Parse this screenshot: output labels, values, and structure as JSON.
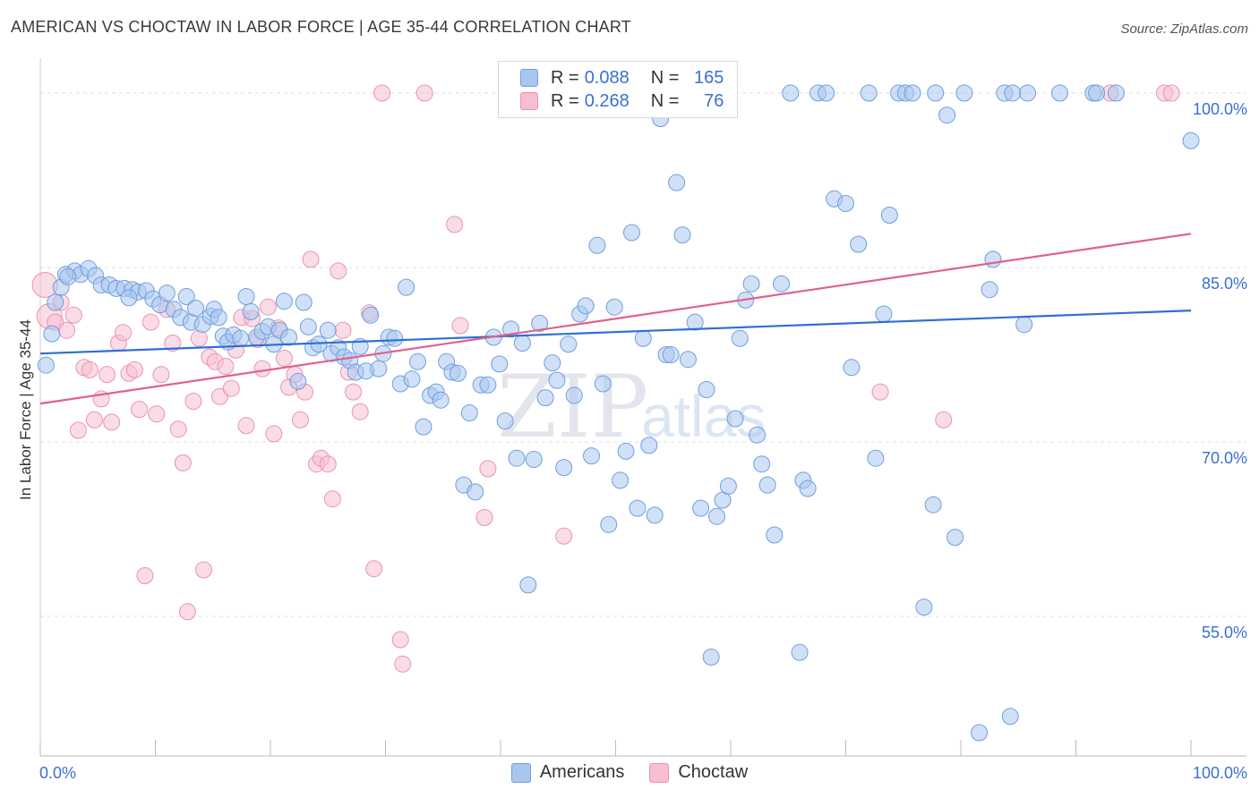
{
  "title": "AMERICAN VS CHOCTAW IN LABOR FORCE | AGE 35-44 CORRELATION CHART",
  "source": "Source: ZipAtlas.com",
  "watermark": "ZIPatlas",
  "legend": {
    "rows": [
      {
        "r_label": "R =",
        "r_value": "0.088",
        "n_label": "N =",
        "n_value": "165"
      },
      {
        "r_label": "R =",
        "r_value": "0.268",
        "n_label": "N =",
        "n_value": "76"
      }
    ],
    "bottom": [
      {
        "label": "Americans"
      },
      {
        "label": "Choctaw"
      }
    ]
  },
  "colors": {
    "americans_fill": "#a9c6ef",
    "americans_stroke": "#6f9fdf",
    "americans_line": "#2f6fd3",
    "choctaw_fill": "#f6bfd1",
    "choctaw_stroke": "#eb93b1",
    "choctaw_line": "#e0608d",
    "axis_text": "#3b6fd1",
    "grid": "#dddddd"
  },
  "chart_data": {
    "type": "scatter",
    "title": "AMERICAN VS CHOCTAW IN LABOR FORCE | AGE 35-44 CORRELATION CHART",
    "xlabel": "",
    "ylabel": "In Labor Force | Age 35-44",
    "xlim": [
      0,
      100
    ],
    "ylim": [
      43,
      103
    ],
    "x_tick_labels": [
      "0.0%",
      "100.0%"
    ],
    "y_ticks": [
      55,
      70,
      85,
      100
    ],
    "y_tick_labels": [
      "55.0%",
      "70.0%",
      "85.0%",
      "100.0%"
    ],
    "grid": true,
    "legend_position": "bottom",
    "series": [
      {
        "name": "Americans",
        "R": 0.088,
        "N": 165,
        "trend": {
          "x": [
            0,
            100
          ],
          "y": [
            77.6,
            81.3
          ]
        },
        "points": [
          {
            "x": 0.5,
            "y": 76.6
          },
          {
            "x": 1.0,
            "y": 79.3
          },
          {
            "x": 1.3,
            "y": 82.0
          },
          {
            "x": 1.8,
            "y": 83.3
          },
          {
            "x": 2.2,
            "y": 84.4
          },
          {
            "x": 3.0,
            "y": 84.7
          },
          {
            "x": 3.5,
            "y": 84.4
          },
          {
            "x": 4.2,
            "y": 84.9
          },
          {
            "x": 4.8,
            "y": 84.3
          },
          {
            "x": 5.3,
            "y": 83.5
          },
          {
            "x": 6.0,
            "y": 83.5
          },
          {
            "x": 6.6,
            "y": 83.2
          },
          {
            "x": 7.3,
            "y": 83.2
          },
          {
            "x": 8.0,
            "y": 83.1
          },
          {
            "x": 8.5,
            "y": 82.9
          },
          {
            "x": 9.2,
            "y": 83.0
          },
          {
            "x": 9.8,
            "y": 82.3
          },
          {
            "x": 10.4,
            "y": 81.8
          },
          {
            "x": 11.0,
            "y": 82.8
          },
          {
            "x": 11.6,
            "y": 81.4
          },
          {
            "x": 12.2,
            "y": 80.7
          },
          {
            "x": 12.7,
            "y": 82.5
          },
          {
            "x": 13.1,
            "y": 80.3
          },
          {
            "x": 13.5,
            "y": 81.5
          },
          {
            "x": 14.1,
            "y": 80.1
          },
          {
            "x": 14.8,
            "y": 80.8
          },
          {
            "x": 15.1,
            "y": 81.4
          },
          {
            "x": 15.5,
            "y": 80.7
          },
          {
            "x": 15.9,
            "y": 79.1
          },
          {
            "x": 16.3,
            "y": 78.6
          },
          {
            "x": 16.8,
            "y": 79.2
          },
          {
            "x": 17.4,
            "y": 78.9
          },
          {
            "x": 17.9,
            "y": 82.5
          },
          {
            "x": 18.3,
            "y": 81.2
          },
          {
            "x": 18.8,
            "y": 79.0
          },
          {
            "x": 19.3,
            "y": 79.5
          },
          {
            "x": 19.8,
            "y": 79.9
          },
          {
            "x": 20.3,
            "y": 78.4
          },
          {
            "x": 20.8,
            "y": 79.6
          },
          {
            "x": 21.2,
            "y": 82.1
          },
          {
            "x": 21.6,
            "y": 79.0
          },
          {
            "x": 22.4,
            "y": 75.2
          },
          {
            "x": 22.9,
            "y": 82.0
          },
          {
            "x": 23.3,
            "y": 79.9
          },
          {
            "x": 23.7,
            "y": 78.1
          },
          {
            "x": 24.2,
            "y": 78.4
          },
          {
            "x": 25.0,
            "y": 79.6
          },
          {
            "x": 25.3,
            "y": 77.6
          },
          {
            "x": 25.9,
            "y": 78.1
          },
          {
            "x": 26.4,
            "y": 77.3
          },
          {
            "x": 26.9,
            "y": 77.0
          },
          {
            "x": 27.4,
            "y": 76.0
          },
          {
            "x": 27.8,
            "y": 78.2
          },
          {
            "x": 28.3,
            "y": 76.1
          },
          {
            "x": 28.7,
            "y": 80.9
          },
          {
            "x": 29.4,
            "y": 76.3
          },
          {
            "x": 29.8,
            "y": 77.6
          },
          {
            "x": 30.3,
            "y": 79.0
          },
          {
            "x": 30.8,
            "y": 78.9
          },
          {
            "x": 31.3,
            "y": 75.0
          },
          {
            "x": 31.8,
            "y": 83.3
          },
          {
            "x": 32.3,
            "y": 75.4
          },
          {
            "x": 32.8,
            "y": 76.9
          },
          {
            "x": 33.3,
            "y": 71.3
          },
          {
            "x": 33.9,
            "y": 74.0
          },
          {
            "x": 34.4,
            "y": 74.3
          },
          {
            "x": 34.8,
            "y": 73.6
          },
          {
            "x": 35.3,
            "y": 76.9
          },
          {
            "x": 35.8,
            "y": 76.0
          },
          {
            "x": 36.3,
            "y": 75.9
          },
          {
            "x": 36.8,
            "y": 66.3
          },
          {
            "x": 37.3,
            "y": 72.5
          },
          {
            "x": 37.8,
            "y": 65.7
          },
          {
            "x": 38.3,
            "y": 74.9
          },
          {
            "x": 38.9,
            "y": 74.9
          },
          {
            "x": 39.4,
            "y": 79.0
          },
          {
            "x": 39.9,
            "y": 76.7
          },
          {
            "x": 40.4,
            "y": 71.8
          },
          {
            "x": 40.9,
            "y": 79.7
          },
          {
            "x": 41.4,
            "y": 68.6
          },
          {
            "x": 41.9,
            "y": 78.5
          },
          {
            "x": 42.4,
            "y": 57.7
          },
          {
            "x": 42.9,
            "y": 68.5
          },
          {
            "x": 43.4,
            "y": 80.2
          },
          {
            "x": 43.9,
            "y": 73.8
          },
          {
            "x": 44.5,
            "y": 76.8
          },
          {
            "x": 44.9,
            "y": 75.3
          },
          {
            "x": 45.5,
            "y": 67.8
          },
          {
            "x": 45.9,
            "y": 78.4
          },
          {
            "x": 46.4,
            "y": 74.0
          },
          {
            "x": 46.9,
            "y": 81.0
          },
          {
            "x": 47.4,
            "y": 81.7
          },
          {
            "x": 47.9,
            "y": 68.8
          },
          {
            "x": 48.4,
            "y": 86.9
          },
          {
            "x": 48.9,
            "y": 75.0
          },
          {
            "x": 49.4,
            "y": 62.9
          },
          {
            "x": 49.9,
            "y": 81.6
          },
          {
            "x": 50.4,
            "y": 66.7
          },
          {
            "x": 50.9,
            "y": 69.2
          },
          {
            "x": 51.4,
            "y": 88.0
          },
          {
            "x": 51.9,
            "y": 64.3
          },
          {
            "x": 52.4,
            "y": 78.9
          },
          {
            "x": 52.9,
            "y": 69.7
          },
          {
            "x": 53.4,
            "y": 63.7
          },
          {
            "x": 53.9,
            "y": 97.8
          },
          {
            "x": 54.4,
            "y": 77.5
          },
          {
            "x": 54.8,
            "y": 77.5
          },
          {
            "x": 55.3,
            "y": 92.3
          },
          {
            "x": 55.8,
            "y": 87.8
          },
          {
            "x": 56.3,
            "y": 77.1
          },
          {
            "x": 56.9,
            "y": 80.3
          },
          {
            "x": 57.4,
            "y": 64.3
          },
          {
            "x": 57.9,
            "y": 74.5
          },
          {
            "x": 58.3,
            "y": 51.5
          },
          {
            "x": 58.8,
            "y": 63.6
          },
          {
            "x": 59.3,
            "y": 65.0
          },
          {
            "x": 59.8,
            "y": 66.2
          },
          {
            "x": 60.4,
            "y": 72.0
          },
          {
            "x": 60.8,
            "y": 78.9
          },
          {
            "x": 61.3,
            "y": 82.2
          },
          {
            "x": 61.8,
            "y": 83.6
          },
          {
            "x": 62.3,
            "y": 70.6
          },
          {
            "x": 62.7,
            "y": 68.1
          },
          {
            "x": 63.2,
            "y": 66.3
          },
          {
            "x": 63.8,
            "y": 62.0
          },
          {
            "x": 64.4,
            "y": 83.6
          },
          {
            "x": 65.2,
            "y": 100.0
          },
          {
            "x": 66.0,
            "y": 51.9
          },
          {
            "x": 66.3,
            "y": 66.7
          },
          {
            "x": 66.7,
            "y": 66.0
          },
          {
            "x": 67.6,
            "y": 100.0
          },
          {
            "x": 68.3,
            "y": 100.0
          },
          {
            "x": 69.0,
            "y": 90.9
          },
          {
            "x": 70.0,
            "y": 90.5
          },
          {
            "x": 70.5,
            "y": 76.4
          },
          {
            "x": 71.1,
            "y": 87.0
          },
          {
            "x": 72.0,
            "y": 100.0
          },
          {
            "x": 72.6,
            "y": 68.6
          },
          {
            "x": 73.3,
            "y": 81.0
          },
          {
            "x": 73.8,
            "y": 89.5
          },
          {
            "x": 74.6,
            "y": 100.0
          },
          {
            "x": 75.2,
            "y": 100.0
          },
          {
            "x": 75.8,
            "y": 100.0
          },
          {
            "x": 76.8,
            "y": 55.8
          },
          {
            "x": 77.6,
            "y": 64.6
          },
          {
            "x": 77.8,
            "y": 100.0
          },
          {
            "x": 78.8,
            "y": 98.1
          },
          {
            "x": 79.5,
            "y": 61.8
          },
          {
            "x": 80.3,
            "y": 100.0
          },
          {
            "x": 81.6,
            "y": 45.0
          },
          {
            "x": 82.5,
            "y": 83.1
          },
          {
            "x": 82.8,
            "y": 85.7
          },
          {
            "x": 83.8,
            "y": 100.0
          },
          {
            "x": 84.3,
            "y": 46.4
          },
          {
            "x": 84.5,
            "y": 100.0
          },
          {
            "x": 85.5,
            "y": 80.1
          },
          {
            "x": 85.8,
            "y": 100.0
          },
          {
            "x": 88.6,
            "y": 100.0
          },
          {
            "x": 91.5,
            "y": 100.0
          },
          {
            "x": 91.8,
            "y": 100.0
          },
          {
            "x": 93.5,
            "y": 100.0
          },
          {
            "x": 100.0,
            "y": 95.9
          },
          {
            "x": 2.4,
            "y": 84.2
          },
          {
            "x": 7.7,
            "y": 82.4
          }
        ]
      },
      {
        "name": "Choctaw",
        "R": 0.268,
        "N": 76,
        "trend": {
          "x": [
            0,
            100
          ],
          "y": [
            73.3,
            87.9
          ]
        },
        "points": [
          {
            "x": 0.4,
            "y": 83.5
          },
          {
            "x": 0.8,
            "y": 80.8
          },
          {
            "x": 1.3,
            "y": 80.3
          },
          {
            "x": 1.8,
            "y": 82.0
          },
          {
            "x": 2.3,
            "y": 79.6
          },
          {
            "x": 2.9,
            "y": 80.9
          },
          {
            "x": 3.3,
            "y": 71.0
          },
          {
            "x": 3.8,
            "y": 76.4
          },
          {
            "x": 4.3,
            "y": 76.2
          },
          {
            "x": 4.7,
            "y": 71.9
          },
          {
            "x": 5.3,
            "y": 73.7
          },
          {
            "x": 5.8,
            "y": 75.8
          },
          {
            "x": 6.2,
            "y": 71.7
          },
          {
            "x": 6.8,
            "y": 78.5
          },
          {
            "x": 7.2,
            "y": 79.4
          },
          {
            "x": 7.7,
            "y": 75.9
          },
          {
            "x": 8.2,
            "y": 76.2
          },
          {
            "x": 8.6,
            "y": 72.8
          },
          {
            "x": 9.1,
            "y": 58.5
          },
          {
            "x": 9.6,
            "y": 80.3
          },
          {
            "x": 10.1,
            "y": 72.4
          },
          {
            "x": 10.5,
            "y": 75.8
          },
          {
            "x": 11.0,
            "y": 81.4
          },
          {
            "x": 11.5,
            "y": 78.5
          },
          {
            "x": 12.0,
            "y": 71.1
          },
          {
            "x": 12.4,
            "y": 68.2
          },
          {
            "x": 12.8,
            "y": 55.4
          },
          {
            "x": 13.3,
            "y": 73.5
          },
          {
            "x": 13.8,
            "y": 78.9
          },
          {
            "x": 14.2,
            "y": 59.0
          },
          {
            "x": 14.7,
            "y": 77.3
          },
          {
            "x": 15.2,
            "y": 76.9
          },
          {
            "x": 15.6,
            "y": 73.9
          },
          {
            "x": 16.1,
            "y": 76.5
          },
          {
            "x": 16.6,
            "y": 74.6
          },
          {
            "x": 17.0,
            "y": 77.9
          },
          {
            "x": 17.5,
            "y": 80.7
          },
          {
            "x": 17.9,
            "y": 71.4
          },
          {
            "x": 18.4,
            "y": 80.6
          },
          {
            "x": 18.9,
            "y": 78.8
          },
          {
            "x": 19.3,
            "y": 76.3
          },
          {
            "x": 19.8,
            "y": 81.6
          },
          {
            "x": 20.3,
            "y": 70.7
          },
          {
            "x": 20.7,
            "y": 79.8
          },
          {
            "x": 21.2,
            "y": 77.2
          },
          {
            "x": 21.6,
            "y": 74.7
          },
          {
            "x": 22.1,
            "y": 75.8
          },
          {
            "x": 22.6,
            "y": 71.9
          },
          {
            "x": 23.0,
            "y": 74.3
          },
          {
            "x": 23.5,
            "y": 85.7
          },
          {
            "x": 24.0,
            "y": 68.1
          },
          {
            "x": 24.4,
            "y": 68.6
          },
          {
            "x": 25.0,
            "y": 68.1
          },
          {
            "x": 25.4,
            "y": 65.1
          },
          {
            "x": 25.9,
            "y": 84.7
          },
          {
            "x": 26.3,
            "y": 79.6
          },
          {
            "x": 26.8,
            "y": 76.0
          },
          {
            "x": 27.2,
            "y": 74.3
          },
          {
            "x": 27.8,
            "y": 72.6
          },
          {
            "x": 28.6,
            "y": 81.1
          },
          {
            "x": 29.0,
            "y": 59.1
          },
          {
            "x": 29.7,
            "y": 100.0
          },
          {
            "x": 31.3,
            "y": 53.0
          },
          {
            "x": 31.5,
            "y": 50.9
          },
          {
            "x": 33.4,
            "y": 100.0
          },
          {
            "x": 36.0,
            "y": 88.7
          },
          {
            "x": 36.5,
            "y": 80.0
          },
          {
            "x": 38.6,
            "y": 63.5
          },
          {
            "x": 38.9,
            "y": 67.7
          },
          {
            "x": 45.5,
            "y": 61.9
          },
          {
            "x": 52.5,
            "y": 100.0
          },
          {
            "x": 73.0,
            "y": 74.3
          },
          {
            "x": 78.5,
            "y": 71.9
          },
          {
            "x": 93.0,
            "y": 100.0
          },
          {
            "x": 97.7,
            "y": 100.0
          },
          {
            "x": 98.3,
            "y": 100.0
          }
        ]
      }
    ]
  }
}
